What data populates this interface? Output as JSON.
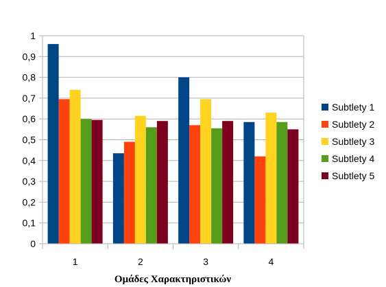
{
  "chart_data": {
    "type": "bar",
    "categories": [
      "1",
      "2",
      "3",
      "4"
    ],
    "series": [
      {
        "name": "Subtlety 1",
        "color": "#004586",
        "values": [
          0.96,
          0.435,
          0.8,
          0.585
        ]
      },
      {
        "name": "Subtlety 2",
        "color": "#ff420e",
        "values": [
          0.695,
          0.49,
          0.57,
          0.42
        ]
      },
      {
        "name": "Subtlety 3",
        "color": "#ffd320",
        "values": [
          0.74,
          0.615,
          0.695,
          0.63
        ]
      },
      {
        "name": "Subtlety 4",
        "color": "#579d1c",
        "values": [
          0.6,
          0.56,
          0.555,
          0.585
        ]
      },
      {
        "name": "Subtlety 5",
        "color": "#7e0021",
        "values": [
          0.595,
          0.59,
          0.59,
          0.55
        ]
      }
    ],
    "yticks": [
      "0",
      "0,1",
      "0,2",
      "0,3",
      "0,4",
      "0,5",
      "0,6",
      "0,7",
      "0,8",
      "0,9",
      "1"
    ],
    "xlabel": "Ομάδες Χαρακτηριστικών",
    "ylim": [
      0,
      1
    ],
    "grid": true,
    "legend_position": "right"
  }
}
